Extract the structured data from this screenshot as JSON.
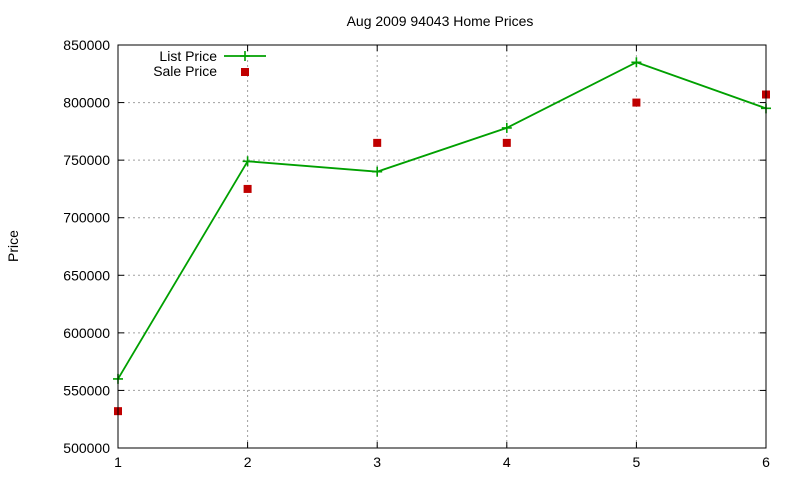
{
  "chart_data": {
    "type": "line",
    "title": "Aug 2009 94043 Home Prices",
    "xlabel": "",
    "ylabel": "Price",
    "xlim": [
      1,
      6
    ],
    "ylim": [
      500000,
      850000
    ],
    "x_ticks": [
      1,
      2,
      3,
      4,
      5,
      6
    ],
    "y_ticks": [
      500000,
      550000,
      600000,
      650000,
      700000,
      750000,
      800000,
      850000
    ],
    "grid": true,
    "legend_position": "top-left",
    "series": [
      {
        "name": "List Price",
        "style": "line with plus markers",
        "color": "#00a000",
        "x": [
          1,
          2,
          3,
          4,
          5,
          6
        ],
        "values": [
          560000,
          749000,
          740000,
          778000,
          835000,
          795000
        ]
      },
      {
        "name": "Sale Price",
        "style": "square points",
        "color": "#c00000",
        "x": [
          1,
          2,
          3,
          4,
          5,
          6
        ],
        "values": [
          532000,
          725000,
          765000,
          765000,
          800000,
          807000
        ]
      }
    ]
  }
}
